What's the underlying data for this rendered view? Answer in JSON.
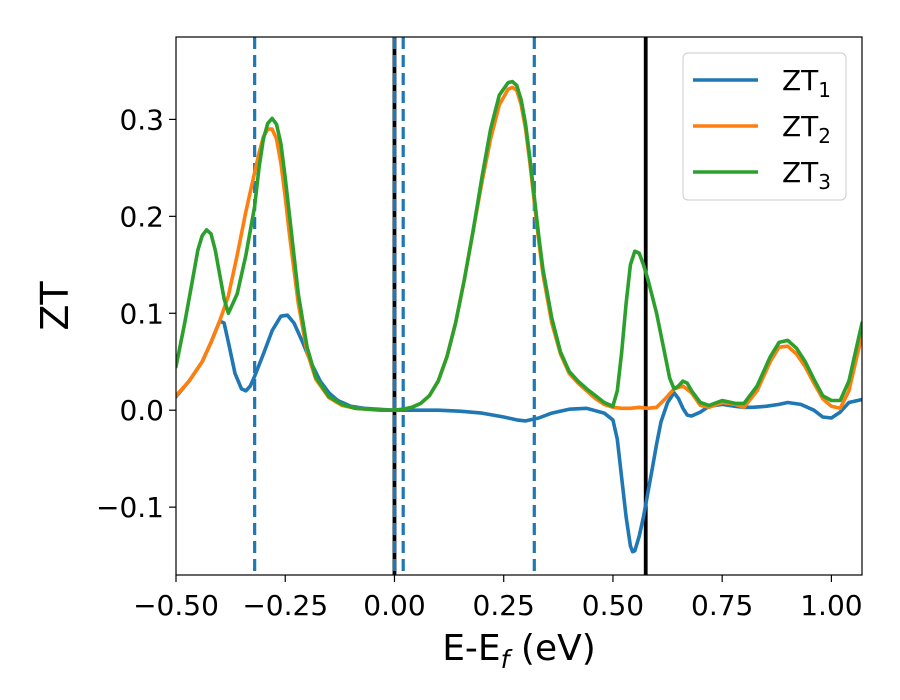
{
  "chart_data": {
    "type": "line",
    "xlabel": "E-E",
    "xlabel_sub": "f",
    "xlabel_unit": " (eV)",
    "ylabel": "ZT",
    "xlim": [
      -0.5,
      1.07
    ],
    "ylim": [
      -0.17,
      0.385
    ],
    "xticks": [
      -0.5,
      -0.25,
      0.0,
      0.25,
      0.5,
      0.75,
      1.0
    ],
    "xtick_labels": [
      "−0.50",
      "−0.25",
      "0.00",
      "0.25",
      "0.50",
      "0.75",
      "1.00"
    ],
    "yticks": [
      -0.1,
      0.0,
      0.1,
      0.2,
      0.3
    ],
    "ytick_labels": [
      "−0.1",
      "0.0",
      "0.1",
      "0.2",
      "0.3"
    ],
    "grid": false,
    "legend_position": "top-right",
    "series": [
      {
        "name": "ZT",
        "name_sub": "1",
        "color": "#1f77b4",
        "x": [
          -0.5,
          -0.47,
          -0.44,
          -0.42,
          -0.4,
          -0.39,
          -0.38,
          -0.365,
          -0.35,
          -0.34,
          -0.33,
          -0.32,
          -0.3,
          -0.28,
          -0.26,
          -0.245,
          -0.23,
          -0.21,
          -0.19,
          -0.17,
          -0.15,
          -0.13,
          -0.1,
          -0.07,
          -0.04,
          0.0,
          0.05,
          0.1,
          0.15,
          0.2,
          0.25,
          0.28,
          0.3,
          0.33,
          0.36,
          0.4,
          0.44,
          0.48,
          0.5,
          0.51,
          0.52,
          0.53,
          0.54,
          0.545,
          0.55,
          0.56,
          0.57,
          0.58,
          0.59,
          0.6,
          0.61,
          0.625,
          0.64,
          0.65,
          0.66,
          0.67,
          0.68,
          0.7,
          0.72,
          0.75,
          0.78,
          0.8,
          0.82,
          0.85,
          0.88,
          0.9,
          0.93,
          0.96,
          0.98,
          1.0,
          1.02,
          1.04,
          1.07
        ],
        "y": [
          0.014,
          0.03,
          0.05,
          0.07,
          0.092,
          0.09,
          0.07,
          0.038,
          0.022,
          0.02,
          0.025,
          0.035,
          0.058,
          0.082,
          0.097,
          0.098,
          0.09,
          0.07,
          0.048,
          0.03,
          0.018,
          0.01,
          0.004,
          0.002,
          0.001,
          0.0,
          0.0,
          0.0,
          -0.001,
          -0.003,
          -0.007,
          -0.01,
          -0.011,
          -0.008,
          -0.003,
          0.001,
          0.002,
          -0.003,
          -0.01,
          -0.03,
          -0.07,
          -0.11,
          -0.14,
          -0.146,
          -0.145,
          -0.13,
          -0.11,
          -0.085,
          -0.06,
          -0.035,
          -0.012,
          0.008,
          0.018,
          0.012,
          0.002,
          -0.005,
          -0.006,
          -0.002,
          0.004,
          0.006,
          0.004,
          0.003,
          0.003,
          0.004,
          0.006,
          0.008,
          0.006,
          0.0,
          -0.007,
          -0.008,
          -0.002,
          0.008,
          0.011
        ]
      },
      {
        "name": "ZT",
        "name_sub": "2",
        "color": "#ff7f0e",
        "x": [
          -0.5,
          -0.47,
          -0.44,
          -0.42,
          -0.4,
          -0.38,
          -0.36,
          -0.34,
          -0.32,
          -0.31,
          -0.3,
          -0.29,
          -0.28,
          -0.27,
          -0.26,
          -0.25,
          -0.24,
          -0.22,
          -0.2,
          -0.18,
          -0.15,
          -0.12,
          -0.09,
          -0.06,
          -0.03,
          0.0,
          0.02,
          0.04,
          0.06,
          0.08,
          0.1,
          0.12,
          0.14,
          0.16,
          0.18,
          0.2,
          0.22,
          0.24,
          0.26,
          0.27,
          0.28,
          0.29,
          0.3,
          0.31,
          0.32,
          0.33,
          0.34,
          0.36,
          0.38,
          0.4,
          0.42,
          0.44,
          0.46,
          0.48,
          0.5,
          0.52,
          0.54,
          0.56,
          0.58,
          0.6,
          0.62,
          0.64,
          0.66,
          0.68,
          0.7,
          0.72,
          0.75,
          0.78,
          0.8,
          0.83,
          0.86,
          0.88,
          0.9,
          0.92,
          0.94,
          0.96,
          0.98,
          1.0,
          1.02,
          1.04,
          1.07
        ],
        "y": [
          0.015,
          0.03,
          0.05,
          0.07,
          0.092,
          0.118,
          0.16,
          0.205,
          0.245,
          0.265,
          0.282,
          0.29,
          0.29,
          0.28,
          0.255,
          0.22,
          0.18,
          0.11,
          0.06,
          0.032,
          0.013,
          0.005,
          0.002,
          0.001,
          0.0,
          0.0,
          0.001,
          0.003,
          0.007,
          0.015,
          0.03,
          0.055,
          0.09,
          0.135,
          0.185,
          0.235,
          0.28,
          0.315,
          0.331,
          0.333,
          0.33,
          0.315,
          0.29,
          0.255,
          0.215,
          0.175,
          0.14,
          0.09,
          0.058,
          0.038,
          0.028,
          0.02,
          0.012,
          0.006,
          0.003,
          0.002,
          0.002,
          0.003,
          0.002,
          0.003,
          0.012,
          0.022,
          0.025,
          0.018,
          0.005,
          0.003,
          0.008,
          0.006,
          0.003,
          0.02,
          0.05,
          0.065,
          0.066,
          0.058,
          0.045,
          0.028,
          0.012,
          0.004,
          0.002,
          0.02,
          0.078
        ]
      },
      {
        "name": "ZT",
        "name_sub": "3",
        "color": "#2ca02c",
        "x": [
          -0.5,
          -0.48,
          -0.46,
          -0.45,
          -0.44,
          -0.43,
          -0.42,
          -0.41,
          -0.4,
          -0.39,
          -0.38,
          -0.36,
          -0.34,
          -0.32,
          -0.31,
          -0.3,
          -0.29,
          -0.28,
          -0.27,
          -0.26,
          -0.25,
          -0.24,
          -0.22,
          -0.2,
          -0.18,
          -0.15,
          -0.12,
          -0.09,
          -0.06,
          -0.03,
          0.0,
          0.02,
          0.04,
          0.06,
          0.08,
          0.1,
          0.12,
          0.14,
          0.16,
          0.18,
          0.2,
          0.22,
          0.24,
          0.26,
          0.27,
          0.28,
          0.29,
          0.3,
          0.31,
          0.32,
          0.33,
          0.34,
          0.36,
          0.38,
          0.4,
          0.42,
          0.44,
          0.46,
          0.48,
          0.5,
          0.51,
          0.52,
          0.53,
          0.54,
          0.55,
          0.56,
          0.57,
          0.58,
          0.6,
          0.62,
          0.63,
          0.64,
          0.65,
          0.66,
          0.67,
          0.68,
          0.7,
          0.72,
          0.75,
          0.78,
          0.8,
          0.83,
          0.86,
          0.88,
          0.9,
          0.92,
          0.94,
          0.96,
          0.98,
          1.0,
          1.02,
          1.04,
          1.07
        ],
        "y": [
          0.045,
          0.09,
          0.14,
          0.165,
          0.18,
          0.186,
          0.182,
          0.165,
          0.14,
          0.115,
          0.1,
          0.12,
          0.16,
          0.21,
          0.25,
          0.28,
          0.296,
          0.301,
          0.295,
          0.275,
          0.24,
          0.2,
          0.12,
          0.065,
          0.034,
          0.014,
          0.006,
          0.002,
          0.001,
          0.0,
          0.0,
          0.001,
          0.003,
          0.007,
          0.015,
          0.03,
          0.055,
          0.09,
          0.135,
          0.185,
          0.24,
          0.29,
          0.325,
          0.338,
          0.339,
          0.335,
          0.32,
          0.295,
          0.26,
          0.22,
          0.18,
          0.145,
          0.095,
          0.06,
          0.04,
          0.03,
          0.022,
          0.015,
          0.008,
          0.004,
          0.02,
          0.06,
          0.11,
          0.15,
          0.164,
          0.162,
          0.15,
          0.135,
          0.1,
          0.055,
          0.033,
          0.022,
          0.025,
          0.03,
          0.028,
          0.02,
          0.008,
          0.005,
          0.01,
          0.007,
          0.007,
          0.025,
          0.055,
          0.07,
          0.072,
          0.064,
          0.05,
          0.032,
          0.015,
          0.01,
          0.01,
          0.03,
          0.09
        ]
      }
    ],
    "vlines": [
      {
        "x": -0.32,
        "style": "dashed",
        "color": "#1f77b4"
      },
      {
        "x": 0.0,
        "style": "solid",
        "color": "#000000"
      },
      {
        "x": 0.0,
        "style": "dashed",
        "color": "#1f77b4"
      },
      {
        "x": 0.02,
        "style": "dashed",
        "color": "#1f77b4"
      },
      {
        "x": 0.32,
        "style": "dashed",
        "color": "#1f77b4"
      },
      {
        "x": 0.575,
        "style": "solid",
        "color": "#000000"
      }
    ]
  }
}
